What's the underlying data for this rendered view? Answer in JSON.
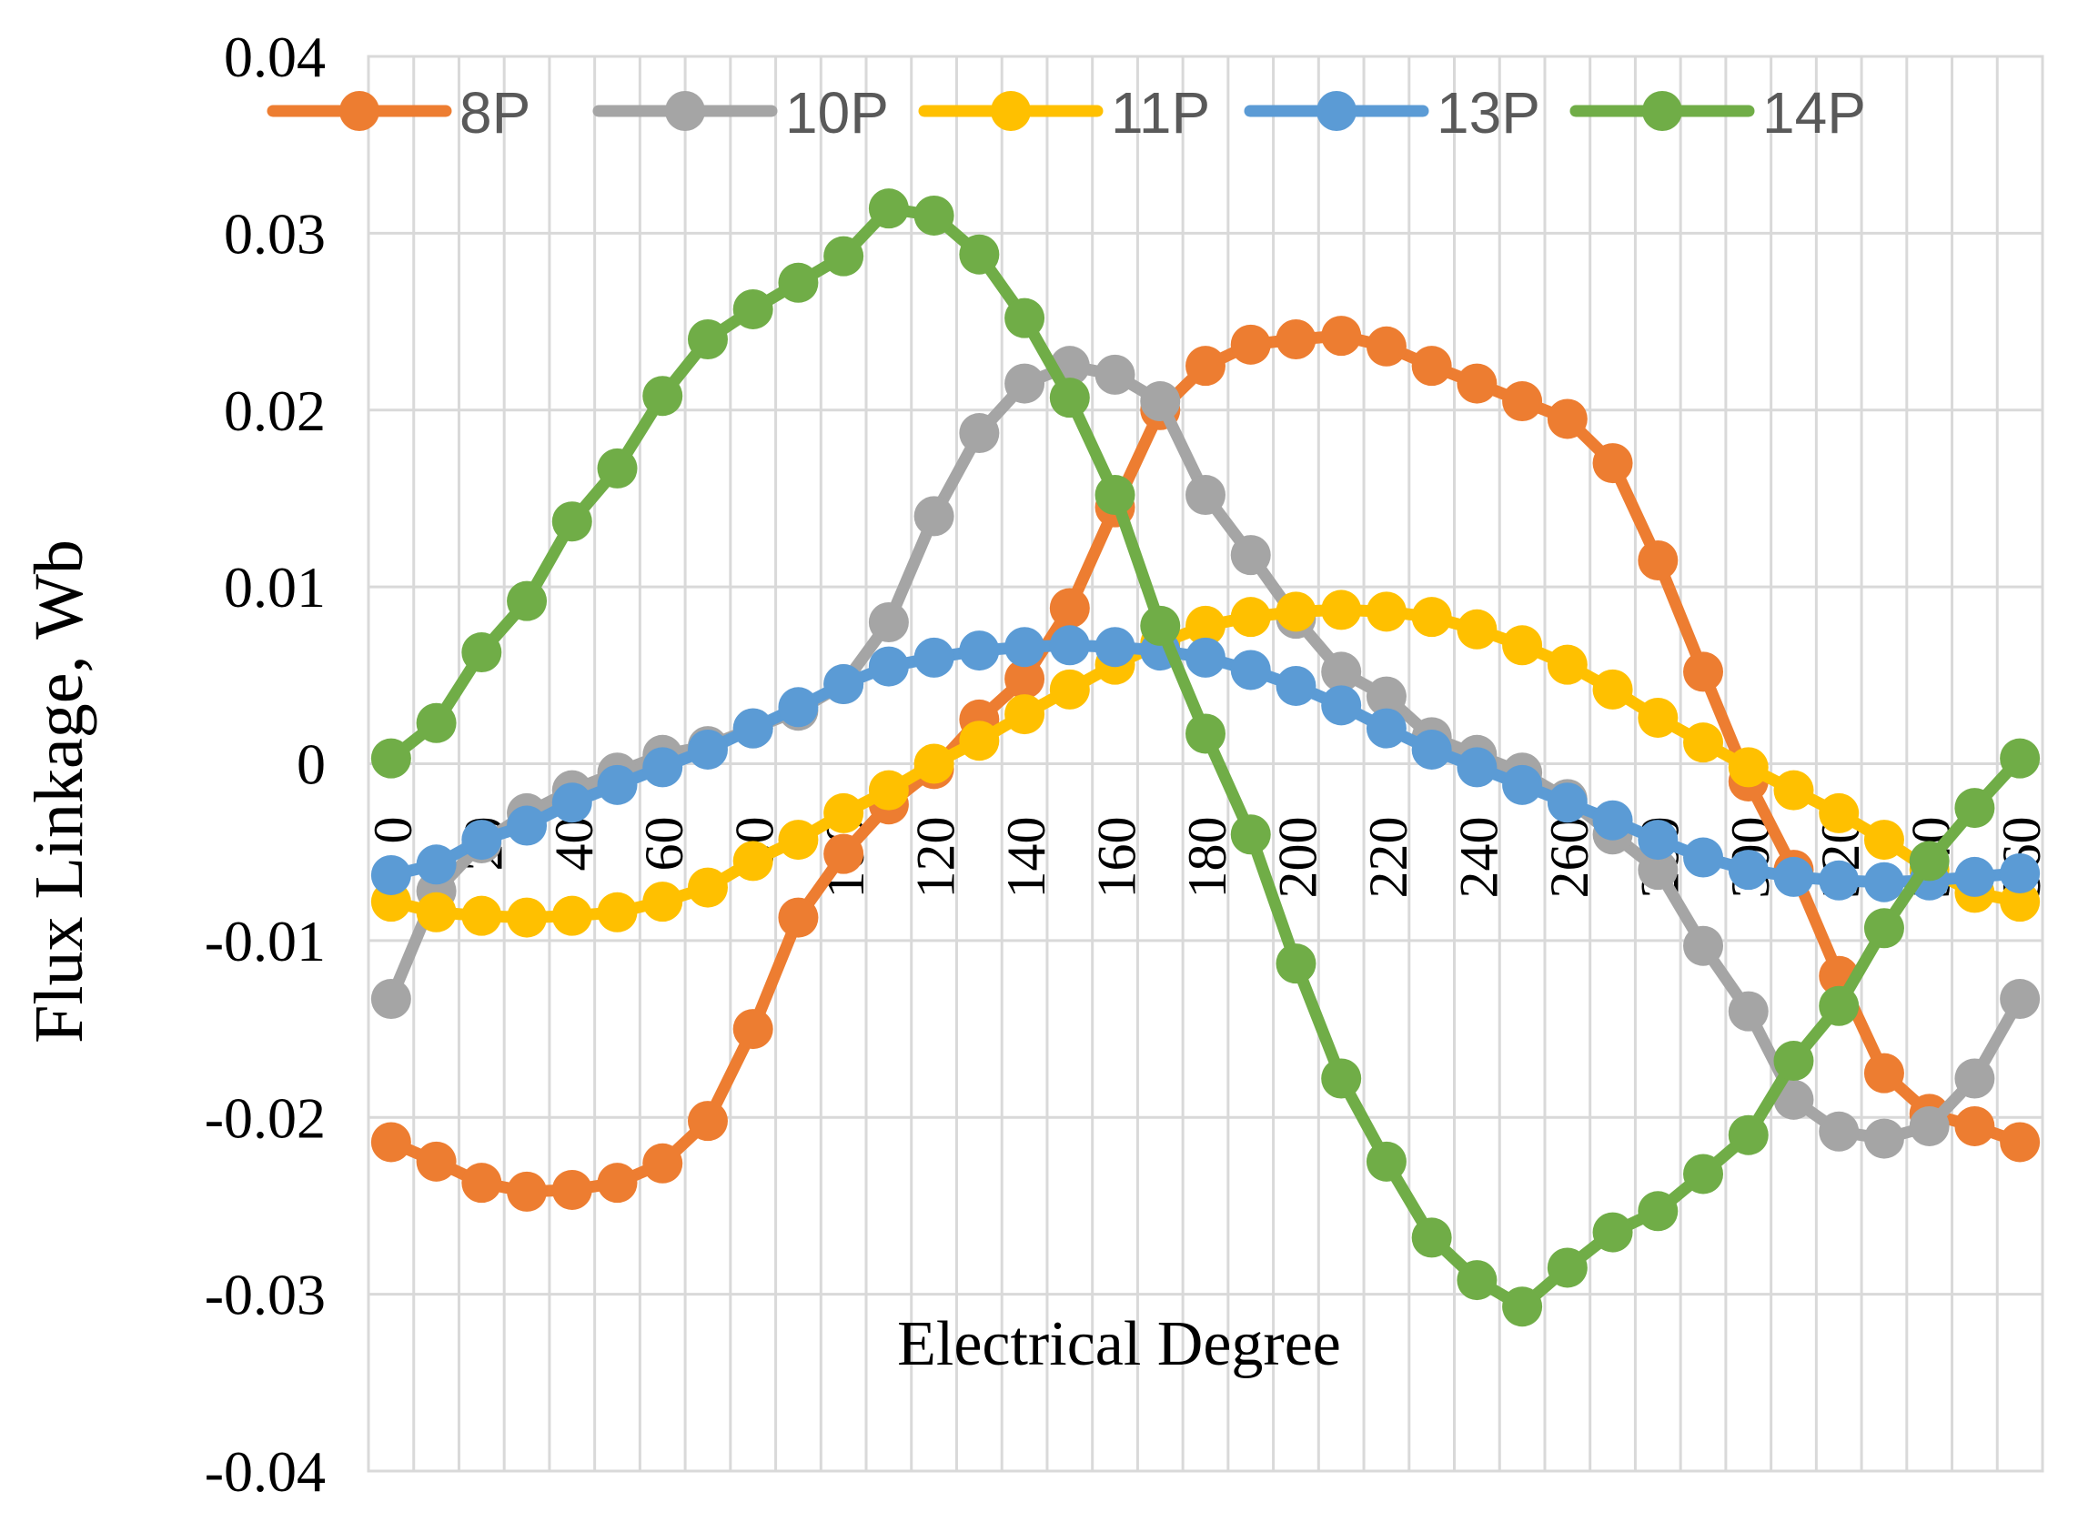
{
  "chart_data": {
    "type": "line",
    "title": "",
    "xlabel": "Electrical Degree",
    "ylabel": "Flux Linkage,  Wb",
    "ylim": [
      -0.04,
      0.04
    ],
    "yticks": [
      "-0.04",
      "-0.03",
      "-0.02",
      "-0.01",
      "0",
      "0.01",
      "0.02",
      "0.03",
      "0.04"
    ],
    "xticks": [
      "0",
      "20",
      "40",
      "60",
      "80",
      "100",
      "120",
      "140",
      "160",
      "180",
      "200",
      "220",
      "240",
      "260",
      "280",
      "300",
      "320",
      "340",
      "360"
    ],
    "x": [
      0,
      10,
      20,
      30,
      40,
      50,
      60,
      70,
      80,
      90,
      100,
      110,
      120,
      130,
      140,
      150,
      160,
      170,
      180,
      190,
      200,
      210,
      220,
      230,
      240,
      250,
      260,
      270,
      280,
      290,
      300,
      310,
      320,
      330,
      340,
      350,
      360
    ],
    "grid": true,
    "legend_position": "top",
    "series": [
      {
        "name": "8P",
        "color": "#ED7D31",
        "values": [
          -0.0214,
          -0.0225,
          -0.0237,
          -0.0242,
          -0.0241,
          -0.0237,
          -0.0226,
          -0.0202,
          -0.015,
          -0.0087,
          -0.0051,
          -0.0023,
          -0.0003,
          0.0025,
          0.0048,
          0.0088,
          0.0145,
          0.02,
          0.0225,
          0.0237,
          0.024,
          0.0242,
          0.0236,
          0.0225,
          0.0215,
          0.0205,
          0.0195,
          0.017,
          0.0115,
          0.0052,
          -0.001,
          -0.006,
          -0.012,
          -0.0175,
          -0.0198,
          -0.0205,
          -0.0214
        ]
      },
      {
        "name": "10P",
        "color": "#A5A5A5",
        "values": [
          -0.0133,
          -0.0072,
          -0.0045,
          -0.0028,
          -0.0015,
          -0.0005,
          0.0005,
          0.001,
          0.002,
          0.003,
          0.0045,
          0.008,
          0.014,
          0.0187,
          0.0215,
          0.0225,
          0.022,
          0.0205,
          0.0152,
          0.0118,
          0.0082,
          0.0052,
          0.0038,
          0.0015,
          0.0005,
          -0.0005,
          -0.002,
          -0.004,
          -0.006,
          -0.0103,
          -0.014,
          -0.019,
          -0.0208,
          -0.0212,
          -0.0205,
          -0.0178,
          -0.0133
        ]
      },
      {
        "name": "11P",
        "color": "#FFC000",
        "values": [
          -0.0078,
          -0.0084,
          -0.0086,
          -0.0087,
          -0.0086,
          -0.0084,
          -0.0078,
          -0.007,
          -0.0055,
          -0.0043,
          -0.0028,
          -0.0015,
          0.0,
          0.0013,
          0.0028,
          0.0042,
          0.0056,
          0.0068,
          0.0078,
          0.0083,
          0.0086,
          0.0087,
          0.0086,
          0.0083,
          0.0076,
          0.0067,
          0.0056,
          0.0042,
          0.0026,
          0.0012,
          -0.0002,
          -0.0015,
          -0.0028,
          -0.0043,
          -0.006,
          -0.0073,
          -0.0078
        ]
      },
      {
        "name": "13P",
        "color": "#5B9BD5",
        "values": [
          -0.0063,
          -0.0057,
          -0.0043,
          -0.0035,
          -0.0022,
          -0.0012,
          -0.0002,
          0.0008,
          0.002,
          0.0032,
          0.0045,
          0.0055,
          0.006,
          0.0064,
          0.0066,
          0.0067,
          0.0066,
          0.0064,
          0.006,
          0.0053,
          0.0044,
          0.0033,
          0.002,
          0.0008,
          -0.0002,
          -0.0012,
          -0.0022,
          -0.0032,
          -0.0043,
          -0.0053,
          -0.006,
          -0.0064,
          -0.0066,
          -0.0067,
          -0.0066,
          -0.0064,
          -0.0062
        ]
      },
      {
        "name": "14P",
        "color": "#70AD47",
        "values": [
          0.0003,
          0.0023,
          0.0063,
          0.0092,
          0.0137,
          0.0167,
          0.0208,
          0.024,
          0.0257,
          0.0272,
          0.0287,
          0.0314,
          0.031,
          0.0288,
          0.0252,
          0.0207,
          0.0152,
          0.0078,
          0.0017,
          -0.004,
          -0.0113,
          -0.0178,
          -0.0225,
          -0.0268,
          -0.0292,
          -0.0307,
          -0.0285,
          -0.0265,
          -0.0253,
          -0.0232,
          -0.021,
          -0.0168,
          -0.0137,
          -0.0093,
          -0.0055,
          -0.0025,
          0.0003
        ]
      }
    ]
  }
}
